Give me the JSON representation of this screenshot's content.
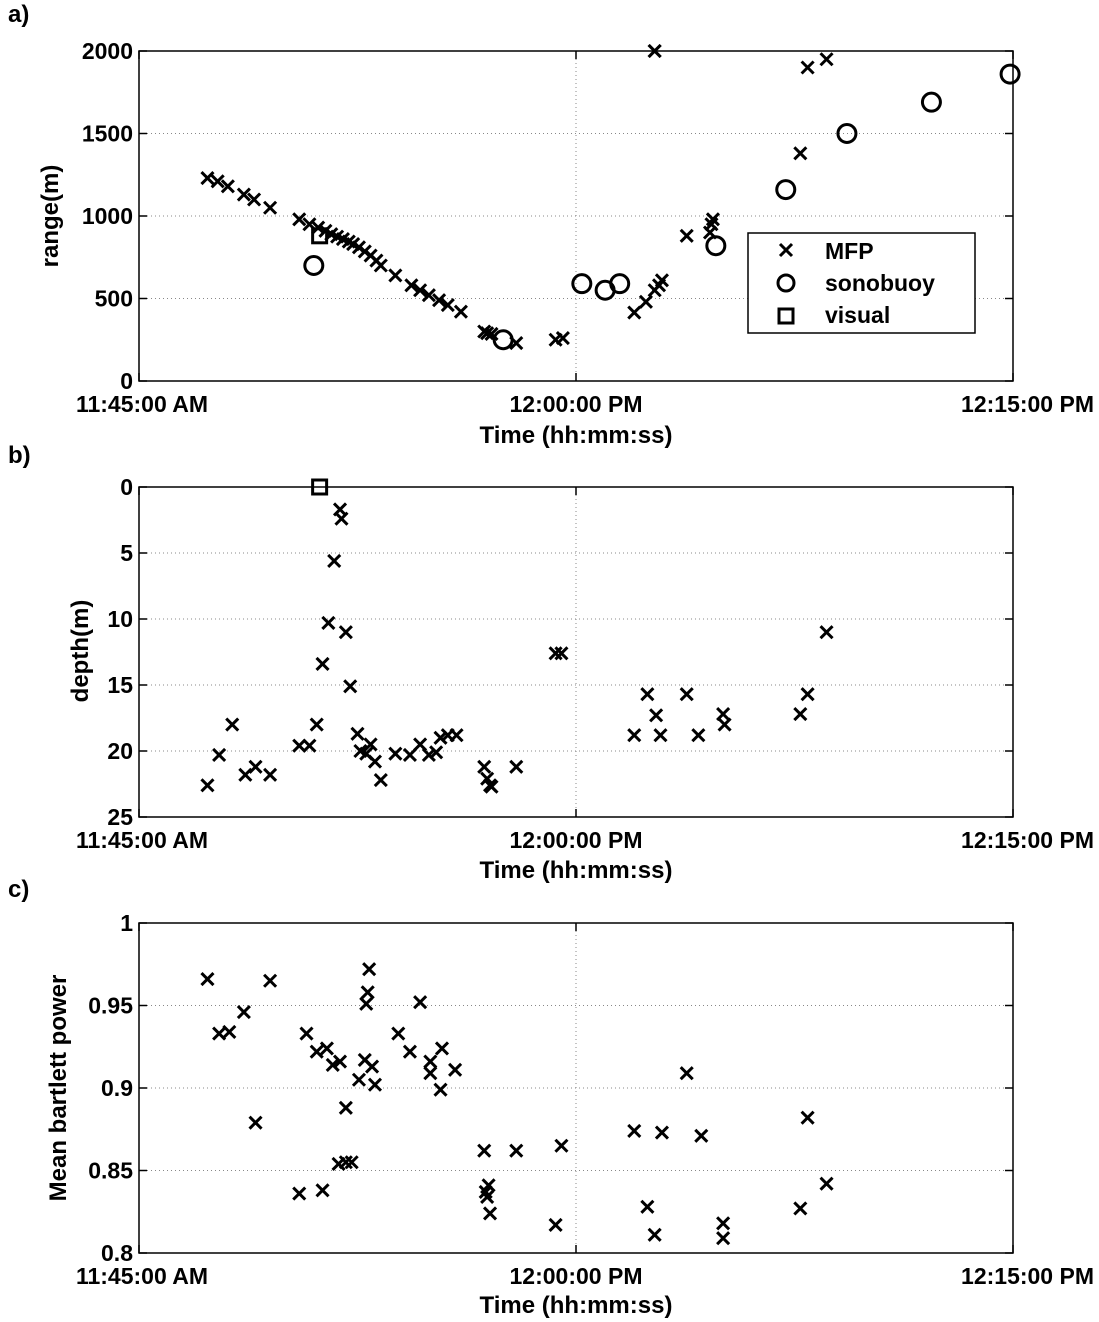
{
  "chart_data": [
    {
      "panel_label": "a)",
      "type": "scatter",
      "xlabel": "Time (hh:mm:ss)",
      "ylabel": "range(m)",
      "x_unit": "minutes after 11:45:00 AM",
      "xlim": [
        0,
        30
      ],
      "ylim": [
        0,
        2000
      ],
      "y_ticks": [
        0,
        500,
        1000,
        1500,
        2000
      ],
      "x_ticks": [
        {
          "value": 0,
          "label": "11:45:00 AM"
        },
        {
          "value": 15,
          "label": "12:00:00 PM"
        },
        {
          "value": 30,
          "label": "12:15:00 PM"
        }
      ],
      "grid": "dotted",
      "legend": {
        "position": "right",
        "entries": [
          {
            "name": "MFP",
            "marker": "x"
          },
          {
            "name": "sonobuoy",
            "marker": "circle"
          },
          {
            "name": "visual",
            "marker": "square"
          }
        ]
      },
      "series": [
        {
          "name": "MFP",
          "marker": "x",
          "points": [
            [
              2.35,
              1230
            ],
            [
              2.7,
              1210
            ],
            [
              3.05,
              1180
            ],
            [
              3.6,
              1130
            ],
            [
              3.95,
              1100
            ],
            [
              4.5,
              1050
            ],
            [
              5.5,
              980
            ],
            [
              5.85,
              950
            ],
            [
              6.15,
              930
            ],
            [
              6.4,
              910
            ],
            [
              6.6,
              890
            ],
            [
              6.8,
              875
            ],
            [
              7.0,
              860
            ],
            [
              7.2,
              845
            ],
            [
              7.35,
              830
            ],
            [
              7.55,
              810
            ],
            [
              7.75,
              785
            ],
            [
              7.95,
              760
            ],
            [
              8.15,
              730
            ],
            [
              8.3,
              700
            ],
            [
              8.8,
              640
            ],
            [
              9.35,
              580
            ],
            [
              9.65,
              550
            ],
            [
              9.95,
              520
            ],
            [
              10.3,
              490
            ],
            [
              10.6,
              460
            ],
            [
              11.05,
              420
            ],
            [
              11.85,
              300
            ],
            [
              11.95,
              290
            ],
            [
              12.1,
              285
            ],
            [
              12.95,
              230
            ],
            [
              14.3,
              250
            ],
            [
              14.55,
              260
            ],
            [
              17.0,
              415
            ],
            [
              17.4,
              480
            ],
            [
              17.7,
              550
            ],
            [
              17.85,
              580
            ],
            [
              17.95,
              610
            ],
            [
              18.8,
              880
            ],
            [
              19.6,
              900
            ],
            [
              19.65,
              950
            ],
            [
              19.7,
              980
            ],
            [
              17.7,
              2000
            ]
          ]
        },
        {
          "name": "MFP",
          "marker": "x",
          "points": [
            [
              17.7,
              2000
            ],
            [
              22.7,
              1380
            ],
            [
              22.95,
              1900
            ],
            [
              23.6,
              1950
            ]
          ]
        },
        {
          "name": "sonobuoy",
          "marker": "circle",
          "points": [
            [
              6.0,
              700
            ],
            [
              12.5,
              250
            ],
            [
              15.2,
              590
            ],
            [
              16.0,
              550
            ],
            [
              16.5,
              590
            ],
            [
              19.8,
              820
            ],
            [
              22.2,
              1160
            ],
            [
              24.3,
              1500
            ],
            [
              27.2,
              1690
            ],
            [
              29.9,
              1860
            ]
          ]
        },
        {
          "name": "visual",
          "marker": "square",
          "points": [
            [
              6.2,
              880
            ]
          ]
        }
      ]
    },
    {
      "panel_label": "b)",
      "type": "scatter",
      "xlabel": "Time (hh:mm:ss)",
      "ylabel": "depth(m)",
      "x_unit": "minutes after 11:45:00 AM",
      "xlim": [
        0,
        30
      ],
      "ylim": [
        0,
        25
      ],
      "y_reversed": true,
      "y_ticks": [
        0,
        5,
        10,
        15,
        20,
        25
      ],
      "x_ticks": [
        {
          "value": 0,
          "label": "11:45:00 AM"
        },
        {
          "value": 15,
          "label": "12:00:00 PM"
        },
        {
          "value": 30,
          "label": "12:15:00 PM"
        }
      ],
      "grid": "dotted",
      "series": [
        {
          "name": "MFP",
          "marker": "x",
          "points": [
            [
              2.35,
              22.6
            ],
            [
              2.75,
              20.3
            ],
            [
              3.2,
              18.0
            ],
            [
              3.65,
              21.8
            ],
            [
              4.0,
              21.2
            ],
            [
              4.5,
              21.8
            ],
            [
              5.5,
              19.6
            ],
            [
              5.85,
              19.6
            ],
            [
              6.1,
              18.0
            ],
            [
              6.3,
              13.4
            ],
            [
              6.5,
              10.3
            ],
            [
              6.7,
              5.6
            ],
            [
              6.9,
              1.7
            ],
            [
              6.95,
              2.4
            ],
            [
              7.1,
              11.0
            ],
            [
              7.25,
              15.1
            ],
            [
              7.5,
              18.7
            ],
            [
              7.6,
              20.0
            ],
            [
              7.8,
              20.2
            ],
            [
              7.95,
              19.5
            ],
            [
              8.1,
              20.8
            ],
            [
              8.3,
              22.2
            ],
            [
              8.8,
              20.2
            ],
            [
              9.3,
              20.3
            ],
            [
              9.65,
              19.5
            ],
            [
              9.95,
              20.3
            ],
            [
              10.2,
              20.1
            ],
            [
              10.35,
              19.0
            ],
            [
              10.6,
              18.8
            ],
            [
              10.9,
              18.8
            ],
            [
              11.85,
              21.2
            ],
            [
              11.95,
              22.1
            ],
            [
              12.05,
              22.6
            ],
            [
              12.1,
              22.7
            ],
            [
              12.95,
              21.2
            ],
            [
              14.3,
              12.6
            ],
            [
              14.5,
              12.6
            ],
            [
              17.0,
              18.8
            ],
            [
              17.45,
              15.7
            ],
            [
              17.75,
              17.3
            ],
            [
              17.9,
              18.8
            ],
            [
              18.8,
              15.7
            ],
            [
              19.2,
              18.8
            ],
            [
              20.05,
              17.2
            ],
            [
              20.1,
              18.0
            ],
            [
              22.7,
              17.2
            ],
            [
              22.95,
              15.7
            ],
            [
              23.6,
              11.0
            ]
          ]
        },
        {
          "name": "visual",
          "marker": "square",
          "points": [
            [
              6.2,
              0
            ]
          ]
        }
      ]
    },
    {
      "panel_label": "c)",
      "type": "scatter",
      "xlabel": "Time (hh:mm:ss)",
      "ylabel": "Mean bartlett power",
      "x_unit": "minutes after 11:45:00 AM",
      "xlim": [
        0,
        30
      ],
      "ylim": [
        0.8,
        1
      ],
      "y_ticks": [
        0.8,
        0.85,
        0.9,
        0.95,
        1
      ],
      "x_ticks": [
        {
          "value": 0,
          "label": "11:45:00 AM"
        },
        {
          "value": 15,
          "label": "12:00:00 PM"
        },
        {
          "value": 30,
          "label": "12:15:00 PM"
        }
      ],
      "grid": "dotted",
      "series": [
        {
          "name": "MFP",
          "marker": "x",
          "points": [
            [
              2.35,
              0.966
            ],
            [
              2.75,
              0.933
            ],
            [
              3.1,
              0.934
            ],
            [
              3.6,
              0.946
            ],
            [
              4.0,
              0.879
            ],
            [
              4.5,
              0.965
            ],
            [
              5.5,
              0.836
            ],
            [
              5.75,
              0.933
            ],
            [
              6.1,
              0.922
            ],
            [
              6.3,
              0.838
            ],
            [
              6.45,
              0.924
            ],
            [
              6.65,
              0.914
            ],
            [
              6.85,
              0.854
            ],
            [
              6.9,
              0.916
            ],
            [
              7.1,
              0.855
            ],
            [
              7.3,
              0.855
            ],
            [
              7.1,
              0.888
            ],
            [
              7.55,
              0.905
            ],
            [
              7.75,
              0.917
            ],
            [
              7.8,
              0.951
            ],
            [
              7.85,
              0.958
            ],
            [
              7.9,
              0.972
            ],
            [
              8.0,
              0.913
            ],
            [
              8.1,
              0.902
            ],
            [
              8.9,
              0.933
            ],
            [
              9.3,
              0.922
            ],
            [
              9.65,
              0.952
            ],
            [
              10.0,
              0.916
            ],
            [
              10.0,
              0.909
            ],
            [
              10.35,
              0.899
            ],
            [
              10.4,
              0.924
            ],
            [
              10.85,
              0.911
            ],
            [
              11.85,
              0.862
            ],
            [
              11.9,
              0.837
            ],
            [
              11.95,
              0.834
            ],
            [
              12.0,
              0.841
            ],
            [
              12.05,
              0.824
            ],
            [
              12.95,
              0.862
            ],
            [
              14.3,
              0.817
            ],
            [
              14.5,
              0.865
            ],
            [
              17.0,
              0.874
            ],
            [
              17.45,
              0.828
            ],
            [
              17.7,
              0.811
            ],
            [
              17.95,
              0.873
            ],
            [
              18.8,
              0.909
            ],
            [
              19.3,
              0.871
            ],
            [
              20.05,
              0.818
            ],
            [
              20.05,
              0.809
            ],
            [
              22.7,
              0.827
            ],
            [
              22.95,
              0.882
            ],
            [
              23.6,
              0.842
            ]
          ]
        }
      ]
    }
  ]
}
